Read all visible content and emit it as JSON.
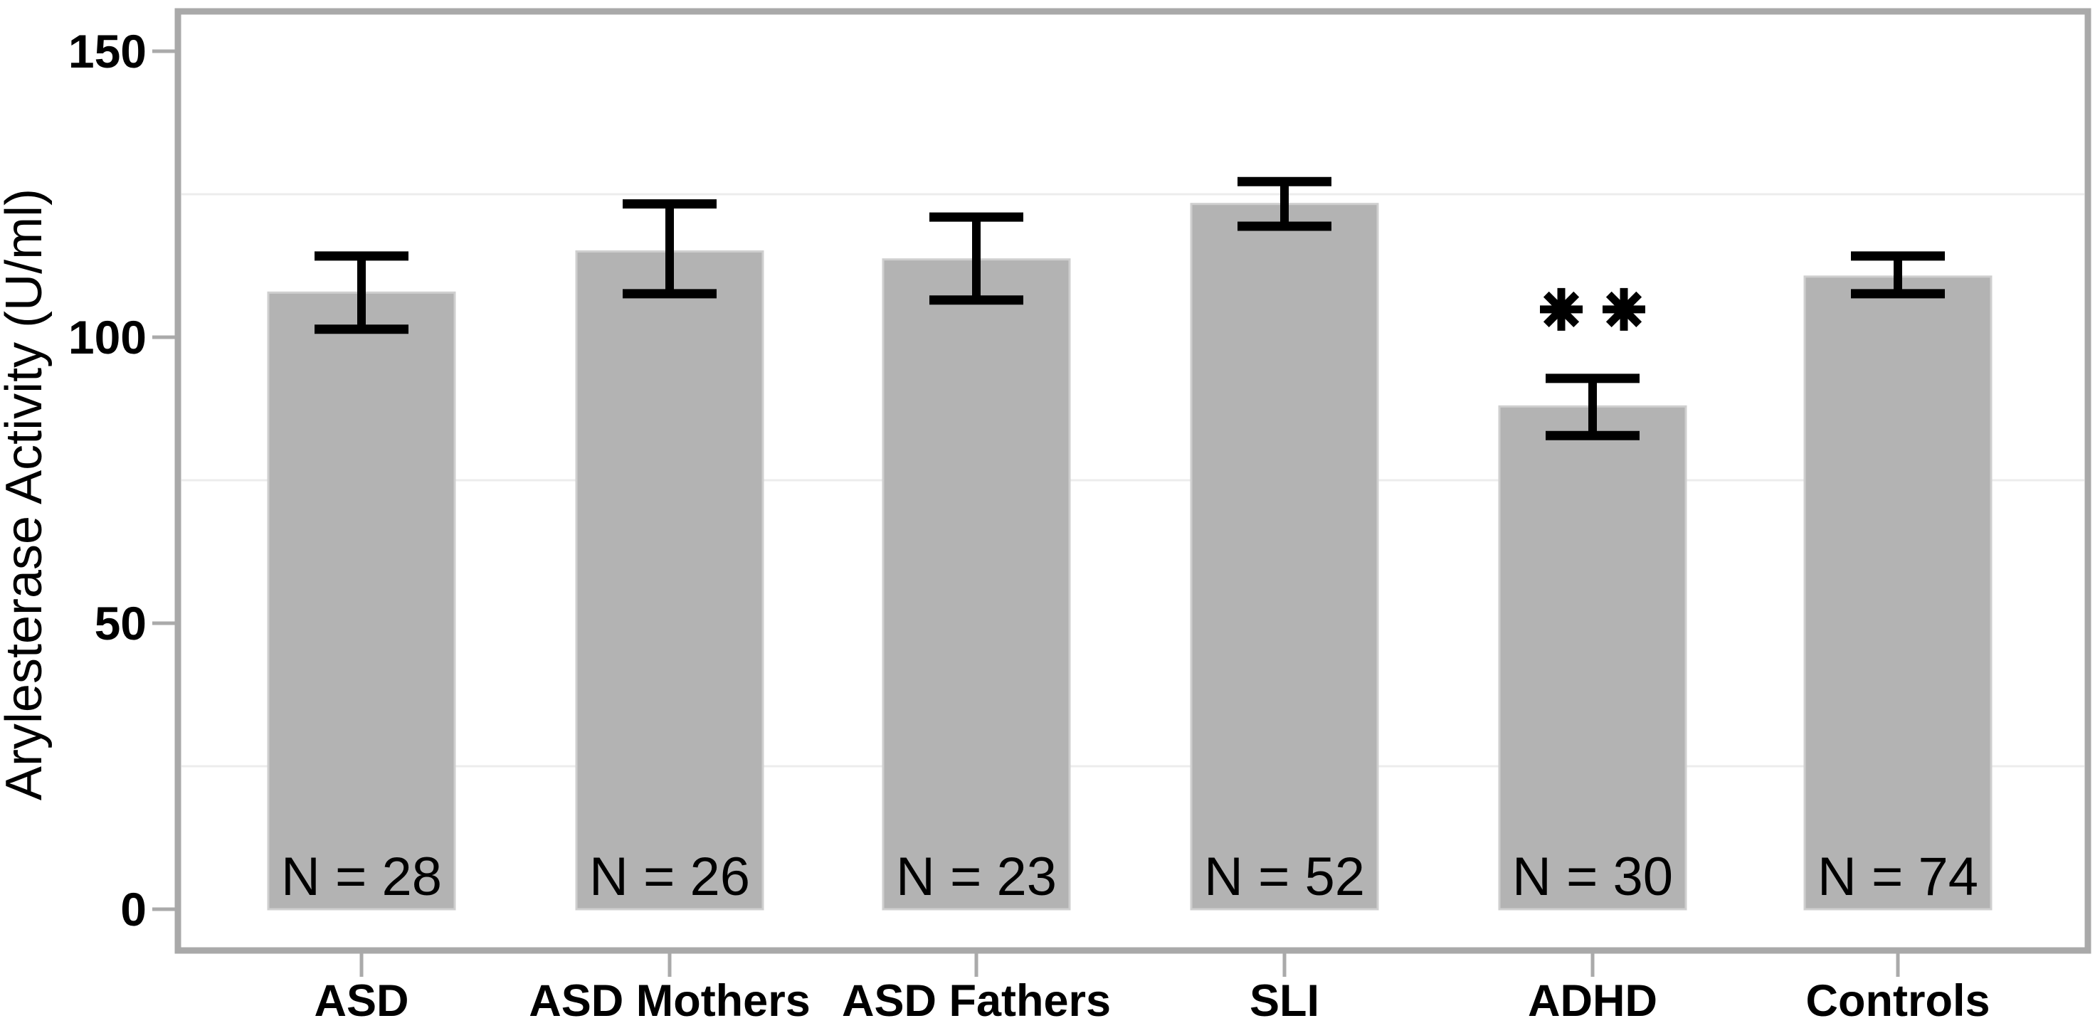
{
  "chart_data": {
    "type": "bar",
    "title": "",
    "xlabel": "",
    "ylabel": "Arylesterase Activity (U/ml)",
    "categories": [
      "ASD",
      "ASD Mothers",
      "ASD Fathers",
      "SLI",
      "ADHD",
      "Controls"
    ],
    "values": [
      107.8,
      115.0,
      113.6,
      123.3,
      87.9,
      110.6
    ],
    "error_low": [
      101.4,
      107.6,
      106.5,
      119.4,
      82.8,
      107.6
    ],
    "error_high": [
      114.2,
      123.3,
      121.0,
      127.2,
      92.8,
      114.2
    ],
    "bar_labels": [
      "N = 28",
      "N = 26",
      "N = 23",
      "N = 52",
      "N = 30",
      "N = 74"
    ],
    "sample_sizes": [
      28,
      26,
      23,
      52,
      30,
      74
    ],
    "annotations": [
      {
        "category": "ADHD",
        "text": "**",
        "meaning": "significance-marker"
      }
    ],
    "yticks": [
      0,
      50,
      100,
      150
    ],
    "ytick_labels": [
      "0",
      "50",
      "100",
      "150"
    ],
    "minor_gridlines": [
      25,
      75,
      125
    ],
    "ylim": [
      -6.5,
      156.5
    ],
    "grid": "minor-horizontal-only",
    "legend": "none",
    "colors": {
      "bar_fill": "#b3b3b3",
      "bar_edge": "#cfcfcf",
      "errorbar": "#000000",
      "plot_border": "#a9a9a9",
      "gridline": "#ececec",
      "tick": "#aaaaaa",
      "text": "#000000",
      "background": "#ffffff"
    }
  }
}
